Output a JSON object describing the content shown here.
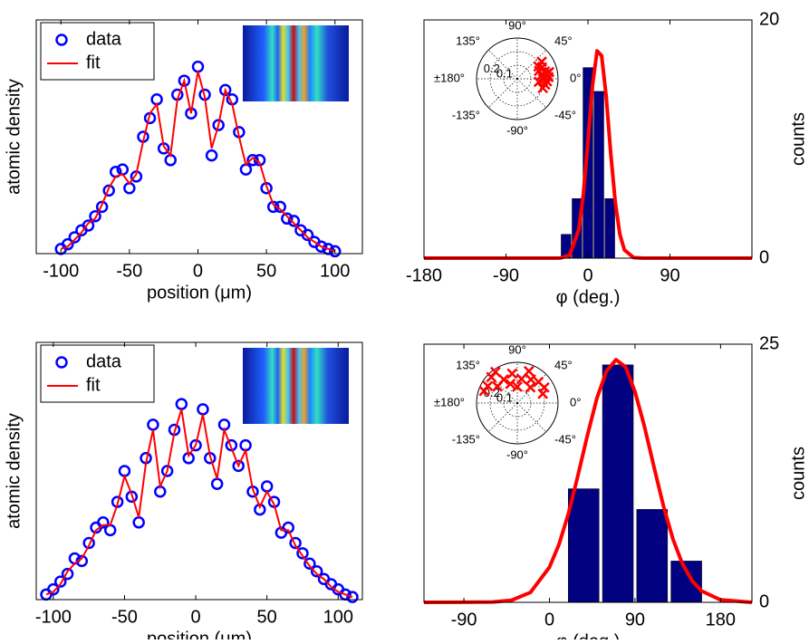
{
  "chart_data": [
    {
      "type": "line",
      "ylabel": "atomic density",
      "xlabel": "position (μm)",
      "xlim": [
        -118,
        120
      ],
      "xticks": [
        -100,
        -50,
        0,
        50,
        100
      ],
      "ylim": [
        0,
        1
      ],
      "x": [
        -100,
        -95,
        -90,
        -85,
        -80,
        -75,
        -70,
        -65,
        -60,
        -55,
        -50,
        -45,
        -40,
        -35,
        -30,
        -25,
        -20,
        -15,
        -10,
        -5,
        0,
        5,
        10,
        15,
        20,
        25,
        30,
        35,
        40,
        45,
        50,
        55,
        60,
        65,
        70,
        75,
        80,
        85,
        90,
        95,
        100
      ],
      "series": [
        {
          "name": "data",
          "color": "#0000ff",
          "marker": "o",
          "values": [
            0.02,
            0.04,
            0.07,
            0.1,
            0.12,
            0.16,
            0.2,
            0.27,
            0.35,
            0.36,
            0.28,
            0.33,
            0.5,
            0.58,
            0.66,
            0.45,
            0.4,
            0.68,
            0.74,
            0.6,
            0.8,
            0.68,
            0.42,
            0.55,
            0.7,
            0.66,
            0.52,
            0.36,
            0.4,
            0.4,
            0.28,
            0.2,
            0.2,
            0.15,
            0.14,
            0.1,
            0.08,
            0.05,
            0.03,
            0.02,
            0.01
          ]
        },
        {
          "name": "fit",
          "color": "#ff0000",
          "values": [
            0.02,
            0.03,
            0.06,
            0.09,
            0.13,
            0.15,
            0.21,
            0.28,
            0.33,
            0.34,
            0.3,
            0.34,
            0.48,
            0.6,
            0.64,
            0.46,
            0.42,
            0.66,
            0.74,
            0.6,
            0.78,
            0.67,
            0.45,
            0.55,
            0.7,
            0.64,
            0.5,
            0.38,
            0.41,
            0.39,
            0.29,
            0.21,
            0.19,
            0.16,
            0.13,
            0.1,
            0.07,
            0.05,
            0.03,
            0.02,
            0.01
          ]
        }
      ]
    },
    {
      "type": "histogram",
      "xlabel": "φ (deg.)",
      "ylabel": "counts",
      "yaxis_side": "right",
      "xlim": [
        -180,
        180
      ],
      "xticks": [
        -180,
        -90,
        0,
        90
      ],
      "ylim": [
        0,
        20
      ],
      "yticks": [
        0,
        20
      ],
      "bins": [
        -30,
        -18,
        -6,
        6,
        18,
        30
      ],
      "values": [
        2,
        5,
        16,
        14,
        5
      ],
      "color": "#000080",
      "fit": {
        "color": "#ff0000",
        "x": [
          -180,
          -60,
          -40,
          -30,
          -20,
          -10,
          -5,
          0,
          5,
          10,
          15,
          20,
          25,
          30,
          35,
          40,
          50,
          60,
          180
        ],
        "values": [
          0,
          0,
          0,
          0.01,
          0.26,
          2.4,
          5.4,
          9.8,
          14.5,
          17.4,
          17,
          13.6,
          8.8,
          4.7,
          2.0,
          0.69,
          0.05,
          0,
          0
        ]
      },
      "inset": {
        "type": "polar",
        "color": "#ff0000",
        "rlim": [
          0,
          0.3
        ],
        "rticks": [
          0.1,
          0.2
        ],
        "thetaticks": [
          {
            "value": 90,
            "label": "90°"
          },
          {
            "value": 45,
            "label": "45°"
          },
          {
            "value": 0,
            "label": "0°"
          },
          {
            "value": -45,
            "label": "-45°"
          },
          {
            "value": -90,
            "label": "-90°"
          },
          {
            "value": -135,
            "label": "-135°"
          },
          {
            "value": 180,
            "label": "±180°"
          },
          {
            "value": 135,
            "label": "135°"
          }
        ],
        "theta": [
          5,
          10,
          0,
          15,
          -5,
          8,
          12,
          25,
          3,
          -12,
          20,
          30,
          -20,
          35,
          -8
        ],
        "r": [
          0.2,
          0.22,
          0.19,
          0.21,
          0.22,
          0.18,
          0.24,
          0.2,
          0.23,
          0.21,
          0.17,
          0.18,
          0.2,
          0.22,
          0.16
        ]
      }
    },
    {
      "type": "line",
      "ylabel": "atomic density",
      "xlabel": "position (μm)",
      "xlim": [
        -112,
        117
      ],
      "xticks": [
        -100,
        -50,
        0,
        50,
        100
      ],
      "ylim": [
        0,
        1
      ],
      "x": [
        -105,
        -100,
        -95,
        -90,
        -85,
        -80,
        -75,
        -70,
        -65,
        -60,
        -55,
        -50,
        -45,
        -40,
        -35,
        -30,
        -25,
        -20,
        -15,
        -10,
        -5,
        0,
        5,
        10,
        15,
        20,
        25,
        30,
        35,
        40,
        45,
        50,
        55,
        60,
        65,
        70,
        75,
        80,
        85,
        90,
        95,
        100,
        105,
        110
      ],
      "series": [
        {
          "name": "data",
          "color": "#0000ff",
          "marker": "o",
          "values": [
            0.02,
            0.04,
            0.07,
            0.1,
            0.16,
            0.15,
            0.22,
            0.28,
            0.3,
            0.27,
            0.38,
            0.5,
            0.4,
            0.3,
            0.55,
            0.68,
            0.42,
            0.5,
            0.66,
            0.76,
            0.55,
            0.6,
            0.74,
            0.55,
            0.45,
            0.68,
            0.6,
            0.52,
            0.6,
            0.42,
            0.35,
            0.44,
            0.38,
            0.26,
            0.28,
            0.22,
            0.18,
            0.14,
            0.11,
            0.08,
            0.06,
            0.04,
            0.02,
            0.01
          ]
        },
        {
          "name": "fit",
          "color": "#ff0000",
          "values": [
            0.02,
            0.03,
            0.06,
            0.11,
            0.14,
            0.16,
            0.21,
            0.27,
            0.29,
            0.29,
            0.37,
            0.48,
            0.41,
            0.32,
            0.53,
            0.66,
            0.44,
            0.5,
            0.65,
            0.74,
            0.56,
            0.6,
            0.72,
            0.56,
            0.47,
            0.66,
            0.59,
            0.52,
            0.58,
            0.43,
            0.36,
            0.42,
            0.37,
            0.27,
            0.27,
            0.21,
            0.17,
            0.13,
            0.1,
            0.08,
            0.05,
            0.03,
            0.02,
            0.01
          ]
        }
      ]
    },
    {
      "type": "histogram",
      "xlabel": "φ (deg.)",
      "ylabel": "counts",
      "yaxis_side": "right",
      "xlim": [
        -132,
        213
      ],
      "xticks": [
        -90,
        0,
        90,
        180
      ],
      "ylim": [
        0,
        25
      ],
      "yticks": [
        0,
        25
      ],
      "bins": [
        18,
        54,
        90,
        126,
        162
      ],
      "values": [
        11,
        23,
        9,
        4
      ],
      "color": "#000080",
      "fit": {
        "color": "#ff0000",
        "x": [
          -132,
          -60,
          -40,
          -20,
          0,
          10,
          20,
          30,
          40,
          50,
          60,
          70,
          80,
          90,
          100,
          110,
          120,
          130,
          140,
          150,
          160,
          180,
          213
        ],
        "values": [
          0,
          0.03,
          0.2,
          0.96,
          3.4,
          5.6,
          8.6,
          12.3,
          16.2,
          19.8,
          22.4,
          23.5,
          22.8,
          20.4,
          17.0,
          13.1,
          9.3,
          6.1,
          3.7,
          2.1,
          1.1,
          0.24,
          0
        ]
      },
      "inset": {
        "type": "polar",
        "color": "#ff0000",
        "rlim": [
          0,
          0.3
        ],
        "rticks": [
          0.1,
          0.2
        ],
        "thetaticks": [
          {
            "value": 90,
            "label": "90°"
          },
          {
            "value": 45,
            "label": "45°"
          },
          {
            "value": 0,
            "label": "0°"
          },
          {
            "value": -45,
            "label": "-45°"
          },
          {
            "value": -90,
            "label": "-90°"
          },
          {
            "value": -135,
            "label": "-135°"
          },
          {
            "value": 180,
            "label": "±180°"
          },
          {
            "value": 135,
            "label": "135°"
          }
        ],
        "theta": [
          135,
          120,
          150,
          100,
          80,
          60,
          45,
          30,
          110,
          140,
          90,
          70,
          160,
          50,
          20,
          125
        ],
        "r": [
          0.27,
          0.2,
          0.25,
          0.22,
          0.18,
          0.2,
          0.22,
          0.23,
          0.15,
          0.19,
          0.12,
          0.25,
          0.26,
          0.15,
          0.2,
          0.28
        ]
      }
    }
  ]
}
